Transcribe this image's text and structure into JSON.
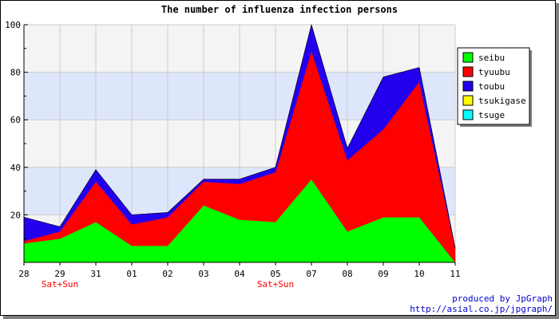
{
  "chart_data": {
    "type": "area",
    "title": "The number of influenza infection persons",
    "xlabel": "",
    "ylabel": "",
    "stacked": true,
    "categories": [
      "28",
      "29",
      "31",
      "01",
      "02",
      "03",
      "04",
      "05",
      "07",
      "08",
      "09",
      "10",
      "11"
    ],
    "category_notes": [
      "",
      "Sat+Sun",
      "",
      "",
      "",
      "",
      "",
      "Sat+Sun",
      "",
      "",
      "",
      "",
      ""
    ],
    "ylim": [
      0,
      100
    ],
    "yticks": [
      20,
      40,
      60,
      80,
      100
    ],
    "grid": true,
    "band_colors": [
      "#f4f4f4",
      "#dde6fb"
    ],
    "legend_position": "right",
    "series": [
      {
        "name": "seibu",
        "color": "#00ff00",
        "values": [
          8,
          10,
          17,
          7,
          7,
          24,
          18,
          17,
          35,
          13,
          19,
          19,
          0
        ]
      },
      {
        "name": "tyuubu",
        "color": "#ff0000",
        "values": [
          1,
          3,
          17,
          9,
          12,
          10,
          15,
          21,
          54,
          30,
          37,
          57,
          6
        ]
      },
      {
        "name": "toubu",
        "color": "#2200ee",
        "values": [
          10,
          2,
          5,
          4,
          2,
          1,
          2,
          2,
          11,
          5,
          22,
          6,
          0
        ]
      },
      {
        "name": "tsukigase",
        "color": "#ffff00",
        "values": [
          0,
          0,
          0,
          0,
          0,
          0,
          0,
          0,
          0,
          0,
          0,
          0,
          0
        ]
      },
      {
        "name": "tsuge",
        "color": "#00ffff",
        "values": [
          0,
          0,
          0,
          0,
          0,
          0,
          0,
          0,
          0,
          0,
          0,
          0,
          0
        ]
      }
    ]
  },
  "footer": {
    "credit": "produced by JpGraph",
    "url": "http://asial.co.jp/jpgraph/"
  },
  "colors": {
    "note_text": "#ff0000",
    "credit_text": "#0000cc"
  }
}
